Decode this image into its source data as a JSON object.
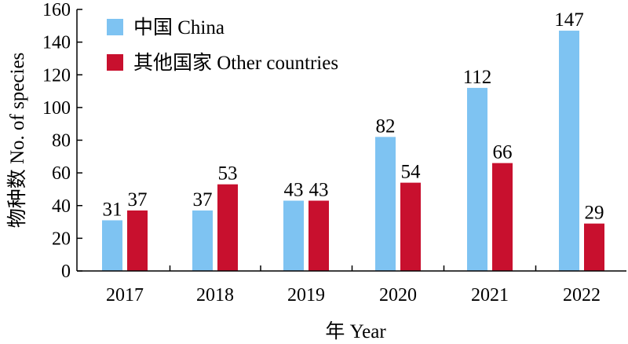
{
  "chart_data": {
    "type": "bar",
    "categories": [
      "2017",
      "2018",
      "2019",
      "2020",
      "2021",
      "2022"
    ],
    "series": [
      {
        "name": "中国 China",
        "values": [
          31,
          37,
          43,
          82,
          112,
          147
        ],
        "color": "#7EC3F2"
      },
      {
        "name": "其他国家 Other countries",
        "values": [
          37,
          53,
          43,
          54,
          66,
          29
        ],
        "color": "#C8102E"
      }
    ],
    "title": "",
    "xlabel": "年 Year",
    "ylabel": "物种数 No. of species",
    "ylim": [
      0,
      160
    ],
    "yticks": [
      0,
      20,
      40,
      60,
      80,
      100,
      120,
      140,
      160
    ],
    "grid": false,
    "legend_position": "top-left"
  }
}
